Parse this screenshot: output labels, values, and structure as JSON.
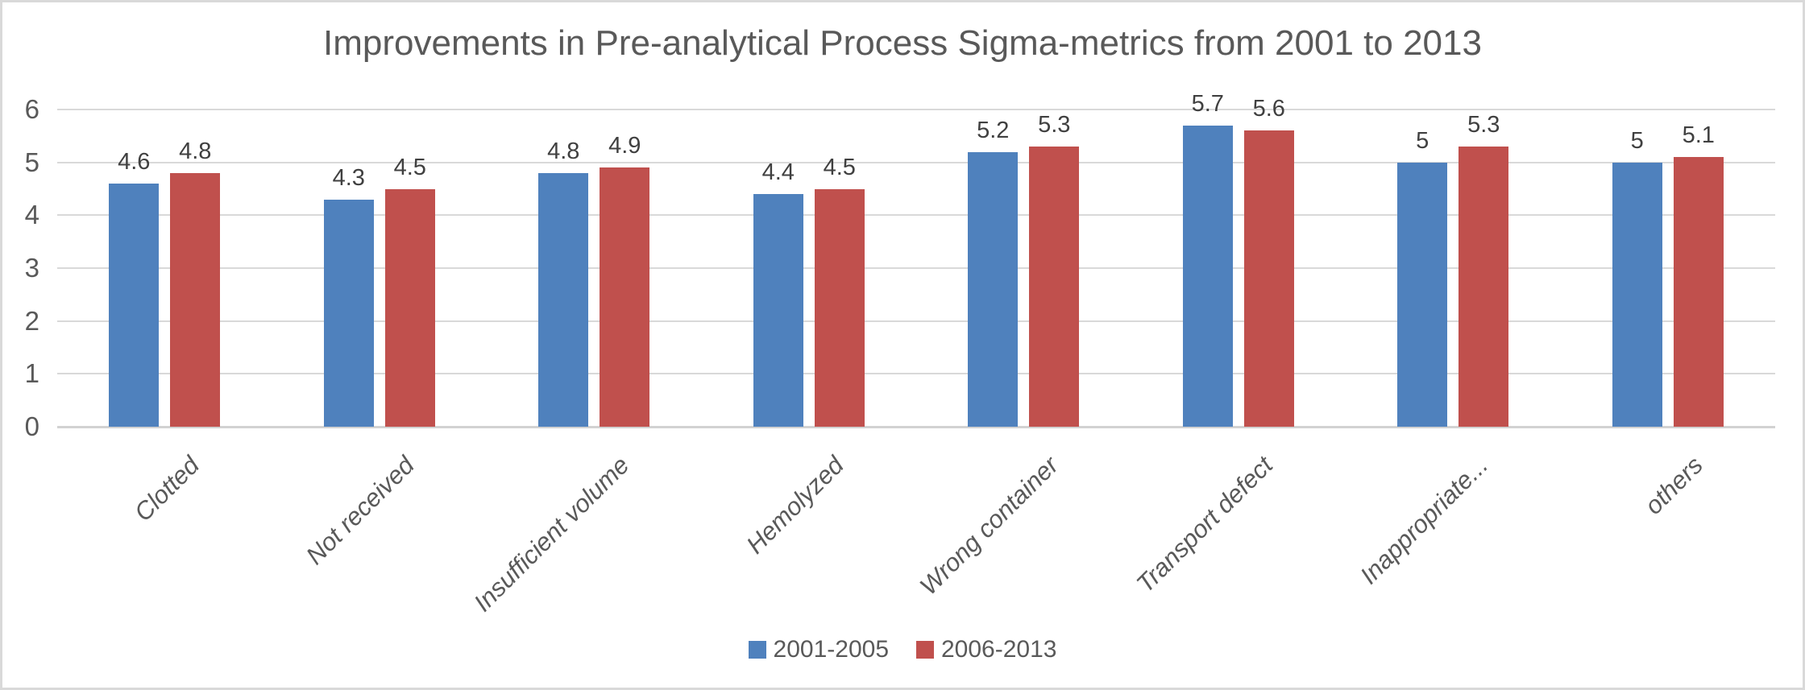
{
  "chart_data": {
    "type": "bar",
    "title": "Improvements in Pre-analytical Process Sigma-metrics from 2001 to 2013",
    "categories": [
      "Clotted",
      "Not received",
      "Insufficient volume",
      "Hemolyzed",
      "Wrong container",
      "Transport defect",
      "Inappropriate...",
      "others"
    ],
    "series": [
      {
        "name": "2001-2005",
        "color": "#4F81BD",
        "values": [
          4.6,
          4.3,
          4.8,
          4.4,
          5.2,
          5.7,
          5,
          5
        ]
      },
      {
        "name": "2006-2013",
        "color": "#C0504D",
        "values": [
          4.8,
          4.5,
          4.9,
          4.5,
          5.3,
          5.6,
          5.3,
          5.1
        ]
      }
    ],
    "ylim": [
      0,
      6
    ],
    "yticks": [
      0,
      1,
      2,
      3,
      4,
      5,
      6
    ],
    "xlabel": "",
    "ylabel": "",
    "grid": "horizontal",
    "legend_position": "bottom",
    "data_labels": true,
    "category_label_style": "italic, rotated 45deg"
  },
  "colors": {
    "series_2001_2005": "#4F81BD",
    "series_2006_2013": "#C0504D",
    "gridline": "#D9D9D9",
    "chart_border": "#D9D9D9",
    "title_text": "#595959",
    "axis_text": "#595959",
    "data_label_text": "#404040"
  }
}
